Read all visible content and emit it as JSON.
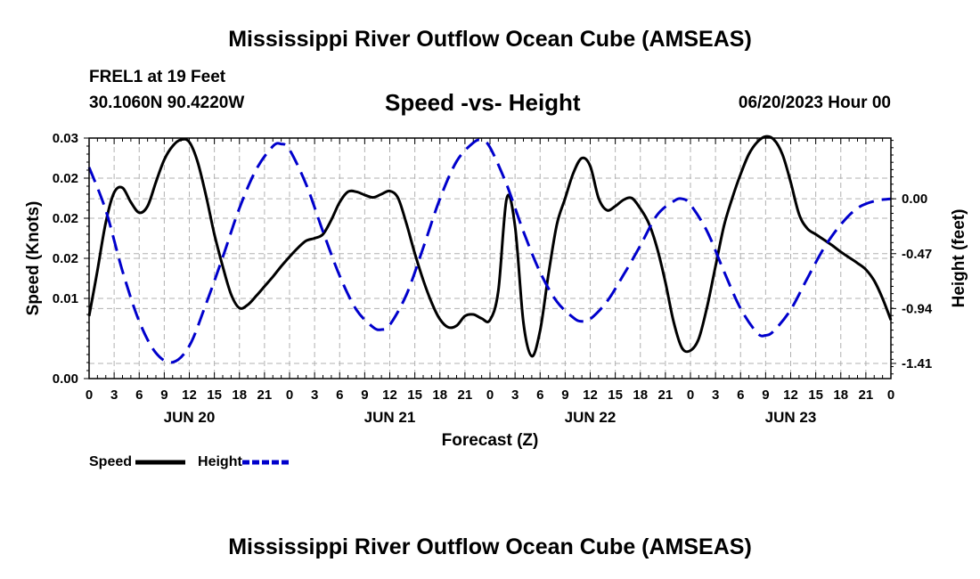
{
  "header": {
    "title": "Mississippi River Outflow Ocean Cube (AMSEAS)",
    "station": "FREL1 at 19 Feet",
    "coords": "30.1060N  90.4220W",
    "plot_title": "Speed -vs- Height",
    "datetime": "06/20/2023 Hour 00"
  },
  "footer": {
    "title": "Mississippi River Outflow Ocean Cube (AMSEAS)"
  },
  "chart_data": {
    "type": "line",
    "title": "Speed -vs- Height",
    "xlabel": "Forecast (Z)",
    "ylabel": "Speed (Knots)",
    "y2label": "Height (feet)",
    "x_unit": "hours from 06/20/2023 00Z",
    "xlim": [
      0,
      96
    ],
    "ylim": [
      0,
      0.03
    ],
    "y2lim": [
      -1.54,
      0.52
    ],
    "x_ticks": [
      0,
      3,
      6,
      9,
      12,
      15,
      18,
      21,
      24,
      27,
      30,
      33,
      36,
      39,
      42,
      45,
      48,
      51,
      54,
      57,
      60,
      63,
      66,
      69,
      72,
      75,
      78,
      81,
      84,
      87,
      90,
      93,
      96
    ],
    "x_tick_labels": [
      "0",
      "3",
      "6",
      "9",
      "12",
      "15",
      "18",
      "21",
      "0",
      "3",
      "6",
      "9",
      "12",
      "15",
      "18",
      "21",
      "0",
      "3",
      "6",
      "9",
      "12",
      "15",
      "18",
      "21",
      "0",
      "3",
      "6",
      "9",
      "12",
      "15",
      "18",
      "21",
      "0"
    ],
    "date_labels": [
      {
        "x": 12,
        "label": "JUN 20"
      },
      {
        "x": 36,
        "label": "JUN 21"
      },
      {
        "x": 60,
        "label": "JUN 22"
      },
      {
        "x": 84,
        "label": "JUN 23"
      }
    ],
    "y_ticks": [
      0,
      0.01,
      0.02,
      0.03
    ],
    "y_tick_labels": [
      "0.00",
      "0.01",
      "0.02",
      "0.02",
      "0.02",
      "0.03"
    ],
    "y_tick_values": [
      0,
      0.01,
      0.015,
      0.02,
      0.025,
      0.03
    ],
    "y2_ticks": [
      0.0,
      -0.47,
      -0.94,
      -1.41
    ],
    "y2_tick_labels": [
      "0.00",
      "-0.47",
      "-0.94",
      "-1.41"
    ],
    "series": [
      {
        "name": "Speed",
        "axis": "left",
        "color": "#000000",
        "dash": "solid",
        "points": [
          [
            0,
            0.0078
          ],
          [
            1,
            0.0135
          ],
          [
            2,
            0.0195
          ],
          [
            3,
            0.0232
          ],
          [
            4,
            0.0238
          ],
          [
            5,
            0.022
          ],
          [
            6,
            0.0207
          ],
          [
            7,
            0.0215
          ],
          [
            8,
            0.0245
          ],
          [
            9,
            0.0273
          ],
          [
            10,
            0.029
          ],
          [
            11,
            0.0298
          ],
          [
            12,
            0.0295
          ],
          [
            13,
            0.027
          ],
          [
            14,
            0.0228
          ],
          [
            15,
            0.018
          ],
          [
            16,
            0.014
          ],
          [
            17,
            0.0105
          ],
          [
            18,
            0.0088
          ],
          [
            19,
            0.0092
          ],
          [
            20,
            0.0103
          ],
          [
            21,
            0.0115
          ],
          [
            22,
            0.0127
          ],
          [
            23,
            0.014
          ],
          [
            24,
            0.0152
          ],
          [
            25,
            0.0163
          ],
          [
            26,
            0.0172
          ],
          [
            27,
            0.0175
          ],
          [
            28,
            0.018
          ],
          [
            29,
            0.0198
          ],
          [
            30,
            0.022
          ],
          [
            31,
            0.0233
          ],
          [
            32,
            0.0233
          ],
          [
            33,
            0.0229
          ],
          [
            34,
            0.0226
          ],
          [
            35,
            0.023
          ],
          [
            36,
            0.0234
          ],
          [
            37,
            0.0225
          ],
          [
            38,
            0.0193
          ],
          [
            39,
            0.0156
          ],
          [
            40,
            0.0123
          ],
          [
            41,
            0.0095
          ],
          [
            42,
            0.0074
          ],
          [
            43,
            0.0064
          ],
          [
            44,
            0.0066
          ],
          [
            45,
            0.0078
          ],
          [
            46,
            0.008
          ],
          [
            47,
            0.0075
          ],
          [
            48,
            0.0073
          ],
          [
            49,
            0.011
          ],
          [
            50,
            0.0225
          ],
          [
            51,
            0.019
          ],
          [
            52,
            0.007
          ],
          [
            53,
            0.0028
          ],
          [
            54,
            0.006
          ],
          [
            55,
            0.013
          ],
          [
            56,
            0.0192
          ],
          [
            57,
            0.0225
          ],
          [
            58,
            0.0257
          ],
          [
            59,
            0.0275
          ],
          [
            60,
            0.0265
          ],
          [
            61,
            0.0225
          ],
          [
            62,
            0.021
          ],
          [
            63,
            0.0215
          ],
          [
            64,
            0.0223
          ],
          [
            65,
            0.0225
          ],
          [
            66,
            0.0212
          ],
          [
            67,
            0.0194
          ],
          [
            68,
            0.0163
          ],
          [
            69,
            0.012
          ],
          [
            70,
            0.007
          ],
          [
            71,
            0.0038
          ],
          [
            72,
            0.0035
          ],
          [
            73,
            0.005
          ],
          [
            74,
            0.009
          ],
          [
            75,
            0.014
          ],
          [
            76,
            0.019
          ],
          [
            77,
            0.0225
          ],
          [
            78,
            0.0255
          ],
          [
            79,
            0.028
          ],
          [
            80,
            0.0295
          ],
          [
            81,
            0.0302
          ],
          [
            82,
            0.0298
          ],
          [
            83,
            0.028
          ],
          [
            84,
            0.0245
          ],
          [
            85,
            0.0205
          ],
          [
            86,
            0.0187
          ],
          [
            87,
            0.018
          ],
          [
            88,
            0.0173
          ],
          [
            89,
            0.0166
          ],
          [
            90,
            0.0158
          ],
          [
            91,
            0.0151
          ],
          [
            92,
            0.0144
          ],
          [
            93,
            0.0136
          ],
          [
            94,
            0.0122
          ],
          [
            95,
            0.01
          ],
          [
            96,
            0.0073
          ]
        ]
      },
      {
        "name": "Height",
        "axis": "right",
        "color": "#0000cc",
        "dash": "dashed",
        "points": [
          [
            0,
            0.27
          ],
          [
            2,
            -0.1
          ],
          [
            4,
            -0.62
          ],
          [
            6,
            -1.05
          ],
          [
            8,
            -1.32
          ],
          [
            10,
            -1.4
          ],
          [
            12,
            -1.26
          ],
          [
            14,
            -0.9
          ],
          [
            16,
            -0.5
          ],
          [
            18,
            -0.08
          ],
          [
            20,
            0.25
          ],
          [
            22,
            0.45
          ],
          [
            23,
            0.47
          ],
          [
            24,
            0.42
          ],
          [
            26,
            0.12
          ],
          [
            28,
            -0.28
          ],
          [
            30,
            -0.66
          ],
          [
            32,
            -0.95
          ],
          [
            34,
            -1.1
          ],
          [
            35,
            -1.12
          ],
          [
            36,
            -1.08
          ],
          [
            38,
            -0.82
          ],
          [
            40,
            -0.42
          ],
          [
            42,
            0.0
          ],
          [
            44,
            0.32
          ],
          [
            46,
            0.48
          ],
          [
            47,
            0.5
          ],
          [
            48,
            0.44
          ],
          [
            50,
            0.12
          ],
          [
            52,
            -0.28
          ],
          [
            54,
            -0.63
          ],
          [
            56,
            -0.88
          ],
          [
            58,
            -1.02
          ],
          [
            59,
            -1.05
          ],
          [
            60,
            -1.03
          ],
          [
            62,
            -0.88
          ],
          [
            64,
            -0.65
          ],
          [
            66,
            -0.4
          ],
          [
            68,
            -0.14
          ],
          [
            70,
            -0.02
          ],
          [
            71,
            0.0
          ],
          [
            72,
            -0.05
          ],
          [
            74,
            -0.28
          ],
          [
            76,
            -0.62
          ],
          [
            78,
            -0.94
          ],
          [
            80,
            -1.15
          ],
          [
            81,
            -1.17
          ],
          [
            82,
            -1.13
          ],
          [
            84,
            -0.95
          ],
          [
            86,
            -0.68
          ],
          [
            88,
            -0.42
          ],
          [
            90,
            -0.22
          ],
          [
            92,
            -0.08
          ],
          [
            94,
            -0.02
          ],
          [
            96,
            0.0
          ]
        ]
      }
    ],
    "legend": [
      {
        "label": "Speed",
        "color": "#000000",
        "dash": "solid"
      },
      {
        "label": "Height",
        "color": "#0000cc",
        "dash": "dashed"
      }
    ],
    "grid": true
  }
}
